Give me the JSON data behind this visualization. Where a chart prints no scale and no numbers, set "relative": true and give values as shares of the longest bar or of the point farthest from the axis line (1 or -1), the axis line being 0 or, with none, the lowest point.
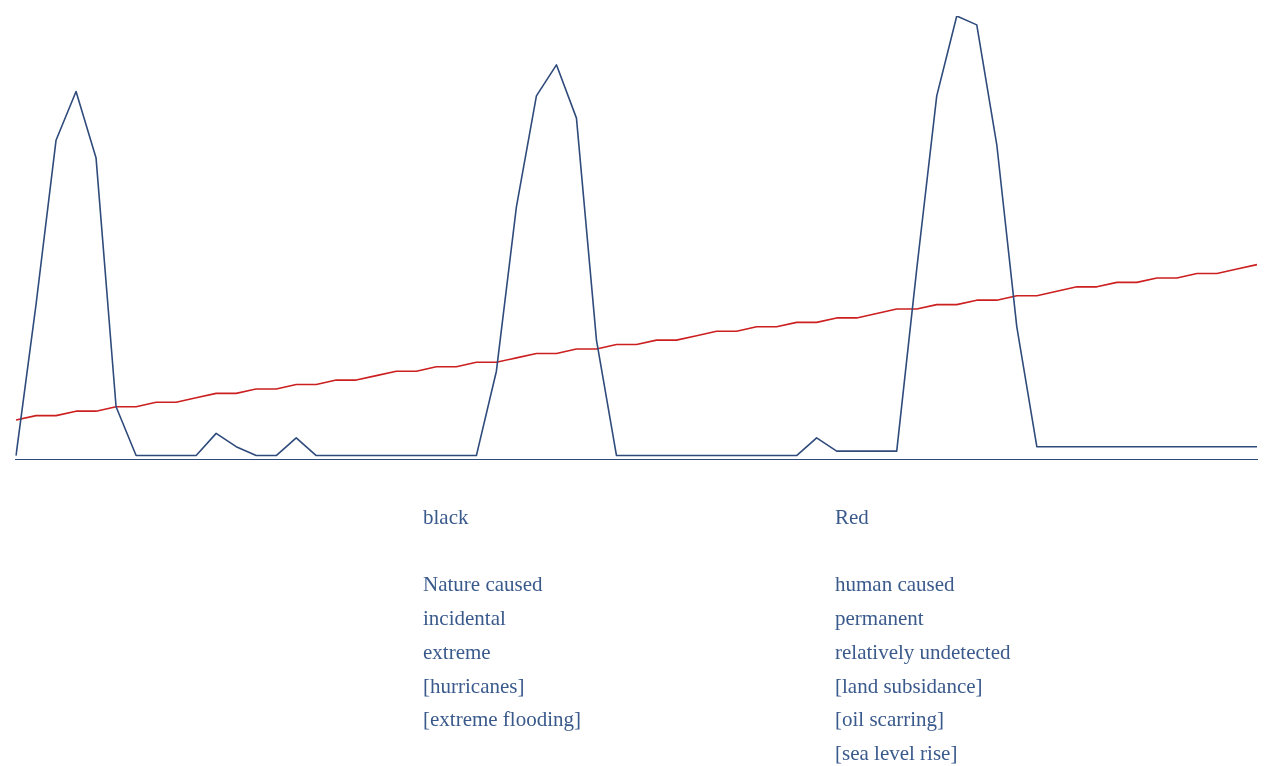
{
  "chart_data": {
    "type": "line",
    "relative": true,
    "categories": [
      null,
      null,
      null,
      null,
      null,
      null,
      null,
      null,
      null,
      null,
      null,
      null,
      null,
      null,
      null,
      null,
      null,
      null,
      null,
      null,
      null,
      null,
      null,
      null,
      null,
      null,
      null,
      null,
      null,
      null,
      null,
      null,
      null,
      null,
      null,
      null,
      null,
      null,
      null,
      null,
      null,
      null,
      null,
      null,
      null,
      null,
      null,
      null,
      null,
      null,
      null,
      null,
      null,
      null,
      null,
      null,
      null,
      null,
      null,
      null,
      null,
      null,
      null
    ],
    "series": [
      {
        "color": "#2f4b7c",
        "values": [
          0.01,
          0.35,
          0.72,
          0.83,
          0.68,
          0.12,
          0.01,
          0.01,
          0.01,
          0.01,
          0.06,
          0.03,
          0.01,
          0.01,
          0.05,
          0.01,
          0.01,
          0.01,
          0.01,
          0.01,
          0.01,
          0.01,
          0.01,
          0.01,
          0.2,
          0.57,
          0.82,
          0.89,
          0.77,
          0.27,
          0.01,
          0.01,
          0.01,
          0.01,
          0.01,
          0.01,
          0.01,
          0.01,
          0.01,
          0.01,
          0.05,
          0.02,
          0.02,
          0.02,
          0.02,
          0.43,
          0.82,
          1,
          0.98,
          0.71,
          0.3,
          0.03,
          0.03,
          0.03,
          0.03,
          0.03,
          0.03,
          0.03,
          0.03,
          0.03,
          0.03,
          0.03,
          0.03
        ]
      },
      {
        "color": "#cc1f1f",
        "values": [
          0.09,
          0.1,
          0.1,
          0.11,
          0.11,
          0.12,
          0.12,
          0.13,
          0.13,
          0.14,
          0.15,
          0.15,
          0.16,
          0.16,
          0.17,
          0.17,
          0.18,
          0.18,
          0.19,
          0.2,
          0.2,
          0.21,
          0.21,
          0.22,
          0.22,
          0.23,
          0.24,
          0.24,
          0.25,
          0.25,
          0.26,
          0.26,
          0.27,
          0.27,
          0.28,
          0.29,
          0.29,
          0.3,
          0.3,
          0.31,
          0.31,
          0.32,
          0.32,
          0.33,
          0.34,
          0.34,
          0.35,
          0.35,
          0.36,
          0.36,
          0.37,
          0.37,
          0.38,
          0.39,
          0.39,
          0.4,
          0.4,
          0.41,
          0.41,
          0.42,
          0.42,
          0.43,
          0.44
        ]
      }
    ],
    "annotations": [
      "black\n\nNature caused\nincidental\nextreme\n[hurricanes]\n[extreme flooding]",
      "Red\n\nhuman caused\npermanent\nrelatively undetected\n[land subsidance]\n[oil scarring]\n[sea level rise]"
    ]
  }
}
